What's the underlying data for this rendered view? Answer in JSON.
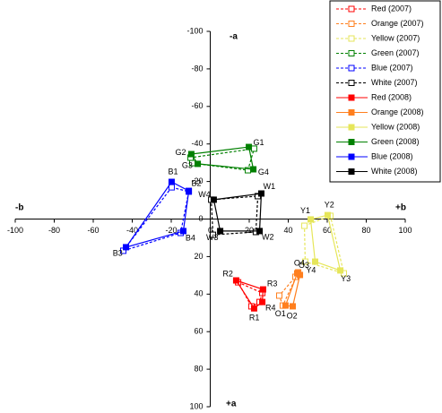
{
  "chart_data": {
    "type": "scatter-polygon",
    "x_label_neg": "-b",
    "x_label_pos": "+b",
    "y_label_neg": "-a",
    "y_label_pos": "+a",
    "xlim": [
      -100,
      100
    ],
    "ylim": [
      -100,
      100
    ],
    "xticks": [
      -100,
      -80,
      -60,
      -40,
      -20,
      0,
      20,
      40,
      60,
      80,
      100
    ],
    "yticks": [
      -100,
      -80,
      -60,
      -40,
      -20,
      0,
      20,
      40,
      60,
      80,
      100
    ],
    "series": [
      {
        "name": "Red (2007)",
        "color": "#ff0000",
        "filled": false,
        "x": [
          21.1,
          14.3,
          26.7,
          25.3
        ],
        "y": [
          46.5,
          33.7,
          39.4,
          44.2
        ]
      },
      {
        "name": "Orange (2007)",
        "color": "#ff7f1e",
        "filled": false,
        "x": [
          37.2,
          35.4,
          43.7,
          45.1
        ],
        "y": [
          46.1,
          40.8,
          30.8,
          28.4
        ]
      },
      {
        "name": "Yellow (2007)",
        "color": "#e6e65a",
        "filled": false,
        "x": [
          48.3,
          61.6,
          68.5,
          48.7
        ],
        "y": [
          3.6,
          -1.7,
          28.9,
          22.7
        ]
      },
      {
        "name": "Green (2007)",
        "color": "#008000",
        "filled": false,
        "x": [
          22.5,
          -10.1,
          -9.2,
          19.3
        ],
        "y": [
          -37.5,
          -32.7,
          -29.8,
          -26.0
        ]
      },
      {
        "name": "Blue (2007)",
        "color": "#0000ff",
        "filled": false,
        "x": [
          -19.8,
          -11.0,
          -15.2,
          -44.6
        ],
        "y": [
          -16.9,
          -14.6,
          7.4,
          16.9
        ]
      },
      {
        "name": "White (2007)",
        "color": "#000000",
        "filled": false,
        "x": [
          24.4,
          23.4,
          1.4,
          0.5
        ],
        "y": [
          -12.2,
          6.9,
          8.4,
          -10.3
        ]
      },
      {
        "name": "Red (2008)",
        "color": "#ff0000",
        "filled": true,
        "x": [
          22.5,
          13.3,
          27.1,
          26.7
        ],
        "y": [
          47.6,
          32.7,
          37.5,
          44.2
        ],
        "labels": [
          "R1",
          "R2",
          "R3",
          "R4"
        ]
      },
      {
        "name": "Orange (2008)",
        "color": "#ff7f1e",
        "filled": true,
        "x": [
          38.6,
          42.3,
          46.0,
          44.6
        ],
        "y": [
          46.1,
          46.5,
          29.8,
          28.9
        ],
        "labels": [
          "O1",
          "O2",
          "O3",
          "O4"
        ]
      },
      {
        "name": "Yellow (2008)",
        "color": "#e6e65a",
        "filled": true,
        "x": [
          51.5,
          60.2,
          66.7,
          53.8
        ],
        "y": [
          0.2,
          -2.1,
          27.4,
          22.7
        ],
        "labels": [
          "Y1",
          "Y2",
          "Y3",
          "Y4"
        ]
      },
      {
        "name": "Green (2008)",
        "color": "#008000",
        "filled": true,
        "x": [
          19.8,
          -9.7,
          -6.4,
          22.1
        ],
        "y": [
          -38.4,
          -34.6,
          -29.4,
          -26.5
        ],
        "labels": [
          "G1",
          "G2",
          "G3",
          "G4"
        ]
      },
      {
        "name": "Blue (2008)",
        "color": "#0000ff",
        "filled": true,
        "x": [
          -19.8,
          -11.0,
          -13.8,
          -43.2
        ],
        "y": [
          -19.8,
          -15.0,
          6.4,
          15.0
        ],
        "labels": [
          "B1",
          "B2",
          "B4",
          "B3"
        ]
      },
      {
        "name": "White (2008)",
        "color": "#000000",
        "filled": true,
        "x": [
          26.2,
          25.3,
          5.1,
          1.8
        ],
        "y": [
          -13.6,
          6.4,
          6.4,
          -10.3
        ],
        "labels": [
          "W1",
          "W2",
          "W3",
          "W4"
        ]
      }
    ]
  }
}
